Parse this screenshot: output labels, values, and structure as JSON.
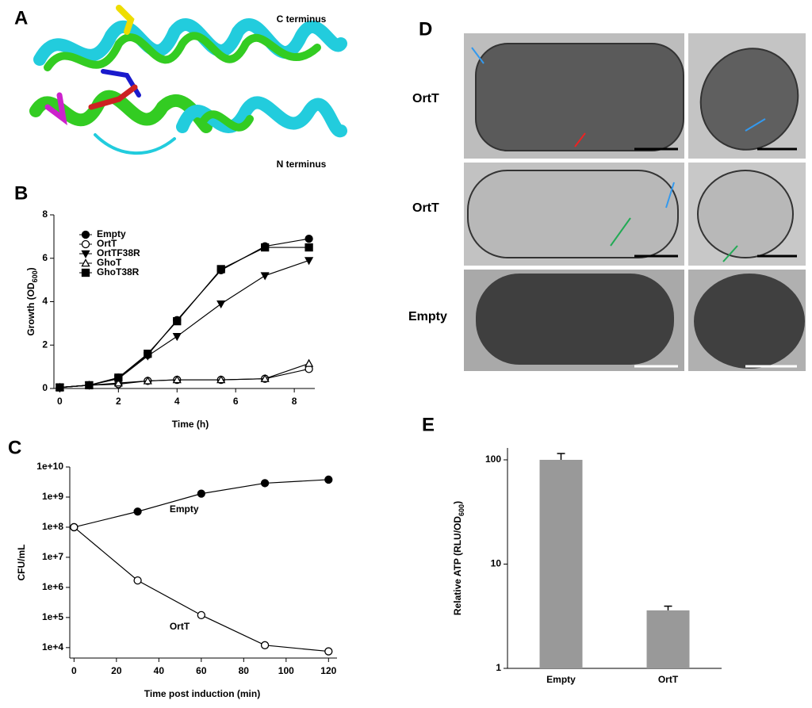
{
  "figure": {
    "A": {
      "label": "A",
      "c_terminus": "C terminus",
      "n_terminus": "N terminus"
    },
    "D": {
      "label": "D",
      "rows": [
        "OrtT",
        "OrtT",
        "Empty"
      ]
    }
  },
  "chart_data": [
    {
      "type": "line",
      "panel": "B",
      "xlabel": "Time (h)",
      "ylabel": [
        "Growth (OD",
        "600",
        ")"
      ],
      "x": [
        0,
        1,
        2,
        3,
        4,
        5.5,
        7,
        8.5
      ],
      "series": [
        {
          "name": "Empty",
          "color": "#000000",
          "marker": "circle",
          "filled": true,
          "values": [
            0.05,
            0.15,
            0.5,
            1.55,
            3.15,
            5.45,
            6.55,
            6.9
          ]
        },
        {
          "name": "OrtT",
          "color": "#000000",
          "marker": "circle",
          "filled": false,
          "values": [
            0.05,
            0.15,
            0.2,
            0.35,
            0.4,
            0.4,
            0.45,
            0.9
          ]
        },
        {
          "name": "OrtTF38R",
          "color": "#000000",
          "marker": "triangle-down",
          "filled": true,
          "values": [
            0.05,
            0.15,
            0.45,
            1.5,
            2.4,
            3.9,
            5.2,
            5.9
          ]
        },
        {
          "name": "GhoT",
          "color": "#000000",
          "marker": "triangle",
          "filled": false,
          "values": [
            0.05,
            0.15,
            0.25,
            0.35,
            0.4,
            0.4,
            0.45,
            1.15
          ]
        },
        {
          "name": "GhoT38R",
          "color": "#000000",
          "marker": "square",
          "filled": true,
          "values": [
            0.05,
            0.15,
            0.5,
            1.6,
            3.1,
            5.5,
            6.5,
            6.5
          ]
        }
      ],
      "xlim": [
        -0.2,
        8.7
      ],
      "xticks": [
        0,
        2,
        4,
        6,
        8
      ],
      "ylim": [
        0,
        8
      ],
      "yticks": [
        0,
        2,
        4,
        6,
        8
      ],
      "log_y": false,
      "legend": "top-left"
    },
    {
      "type": "line",
      "panel": "C",
      "xlabel": "Time post induction (min)",
      "ylabel": [
        "CFU/mL"
      ],
      "x": [
        0,
        30,
        60,
        90,
        120
      ],
      "series": [
        {
          "name": "Empty",
          "color": "#000000",
          "marker": "circle",
          "filled": true,
          "values": [
            100000000,
            330000000,
            1300000000,
            2900000000,
            3800000000
          ]
        },
        {
          "name": "OrtT",
          "color": "#000000",
          "marker": "circle",
          "filled": false,
          "values": [
            100000000,
            1700000,
            120000,
            12000,
            7500
          ]
        }
      ],
      "xlim": [
        -2,
        124
      ],
      "xticks": [
        0,
        20,
        40,
        60,
        80,
        100,
        120
      ],
      "ylim": [
        4500,
        10000000000
      ],
      "log_y": true,
      "yticks": [
        {
          "value": 10000,
          "label": "1e+4"
        },
        {
          "value": 100000,
          "label": "1e+5"
        },
        {
          "value": 1000000,
          "label": "1e+6"
        },
        {
          "value": 10000000,
          "label": "1e+7"
        },
        {
          "value": 100000000,
          "label": "1e+8"
        },
        {
          "value": 1000000000,
          "label": "1e+9"
        },
        {
          "value": 10000000000,
          "label": "1e+10"
        }
      ],
      "legend": "inline"
    },
    {
      "type": "bar",
      "panel": "E",
      "ylabel": [
        "Relative ATP (RLU/OD",
        "600",
        ")"
      ],
      "categories": [
        "Empty",
        "OrtT"
      ],
      "values": [
        100,
        3.6
      ],
      "errors": [
        15,
        0.35
      ],
      "color": "#999999",
      "ylim": [
        1,
        130
      ],
      "yticks": [
        1,
        10,
        100
      ],
      "log_y": true
    }
  ]
}
